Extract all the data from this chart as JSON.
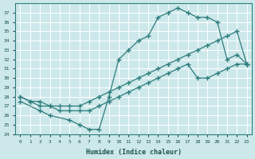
{
  "xlabel": "Humidex (Indice chaleur)",
  "bg_color": "#cde8ea",
  "grid_color": "#ffffff",
  "line_color": "#2e7d7d",
  "xlim": [
    -0.5,
    23.5
  ],
  "ylim": [
    24,
    38
  ],
  "xticks": [
    0,
    1,
    2,
    3,
    4,
    5,
    6,
    7,
    8,
    9,
    10,
    11,
    12,
    13,
    14,
    15,
    16,
    17,
    18,
    19,
    20,
    21,
    22,
    23
  ],
  "yticks": [
    24,
    25,
    26,
    27,
    28,
    29,
    30,
    31,
    32,
    33,
    34,
    35,
    36,
    37
  ],
  "line1": {
    "x": [
      0,
      2,
      3,
      5,
      6,
      7,
      8,
      9,
      10,
      11,
      12,
      13,
      14,
      15,
      16,
      17,
      18,
      19,
      20,
      21,
      22,
      23
    ],
    "y": [
      27.5,
      26.5,
      26,
      25.5,
      25,
      24.5,
      24.5,
      28,
      32,
      33,
      34,
      34.5,
      36.5,
      37,
      37.5,
      37,
      36.5,
      36.5,
      36,
      32,
      32.5,
      31.5
    ]
  },
  "line2": {
    "x": [
      0,
      1,
      2,
      3,
      4,
      5,
      6,
      7,
      8,
      9,
      10,
      11,
      12,
      13,
      14,
      15,
      16,
      17,
      18,
      19,
      20,
      21,
      22,
      23
    ],
    "y": [
      28,
      27.5,
      27.5,
      27,
      27,
      27,
      27,
      27.5,
      28,
      28.5,
      29,
      29.5,
      30,
      30.5,
      31,
      31.5,
      32,
      32.5,
      33,
      33.5,
      34,
      34.5,
      35,
      31.5
    ]
  },
  "line3": {
    "x": [
      0,
      1,
      2,
      3,
      4,
      5,
      6,
      7,
      8,
      9,
      10,
      11,
      12,
      13,
      14,
      15,
      16,
      17,
      18,
      19,
      20,
      21,
      22,
      23
    ],
    "y": [
      28,
      27.5,
      27,
      27,
      26.5,
      26.5,
      26.5,
      26.5,
      27,
      27.5,
      28,
      28.5,
      29,
      29.5,
      30,
      30.5,
      31,
      31.5,
      30,
      30,
      30.5,
      31,
      31.5,
      31.5
    ]
  }
}
